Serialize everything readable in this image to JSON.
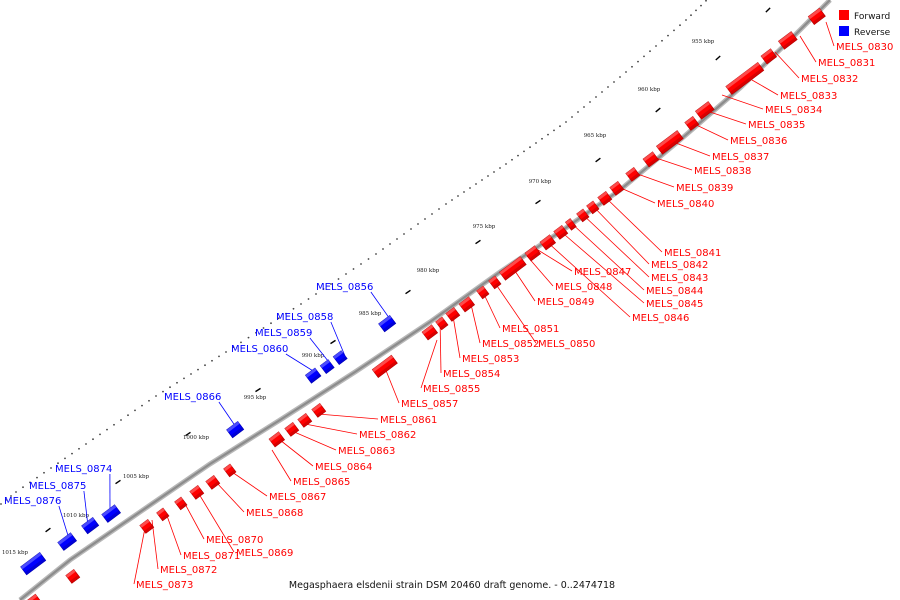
{
  "legend": {
    "items": [
      {
        "label": "Forward",
        "color": "#ff0000"
      },
      {
        "label": "Reverse",
        "color": "#0000ff"
      }
    ]
  },
  "caption": "Megasphaera elsdenii strain DSM 20460 draft genome. - 0..2474718",
  "colors": {
    "forward": "#ff0000",
    "reverse": "#0000ff",
    "backbone": "#8c8c8c",
    "tick": "#000000"
  },
  "scale_labels": [
    "955 kbp",
    "960 kbp",
    "965 kbp",
    "970 kbp",
    "975 kbp",
    "980 kbp",
    "985 kbp",
    "990 kbp",
    "995 kbp",
    "1000 kbp",
    "1005 kbp",
    "1010 kbp",
    "1015 kbp"
  ],
  "forward_labels": [
    "MELS_0830",
    "MELS_0831",
    "MELS_0832",
    "MELS_0833",
    "MELS_0834",
    "MELS_0835",
    "MELS_0836",
    "MELS_0837",
    "MELS_0838",
    "MELS_0839",
    "MELS_0840",
    "MELS_0841",
    "MELS_0842",
    "MELS_0843",
    "MELS_0844",
    "MELS_0845",
    "MELS_0846",
    "MELS_0847",
    "MELS_0848",
    "MELS_0849",
    "MELS_0850",
    "MELS_0851",
    "MELS_0852",
    "MELS_0853",
    "MELS_0854",
    "MELS_0855",
    "MELS_0857",
    "MELS_0861",
    "MELS_0862",
    "MELS_0863",
    "MELS_0864",
    "MELS_0865",
    "MELS_0867",
    "MELS_0868",
    "MELS_0869",
    "MELS_0870",
    "MELS_0871",
    "MELS_0872",
    "MELS_0873"
  ],
  "reverse_labels": [
    "MELS_0856",
    "MELS_0858",
    "MELS_0859",
    "MELS_0860",
    "MELS_0866",
    "MELS_0874",
    "MELS_0875",
    "MELS_0876"
  ]
}
